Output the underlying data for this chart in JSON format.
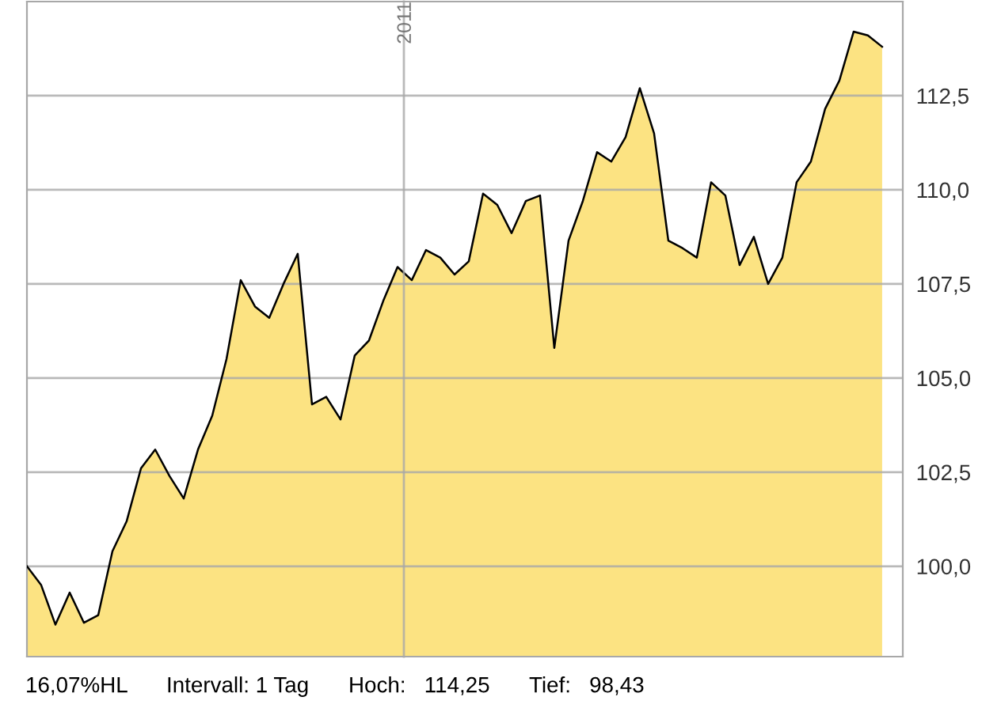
{
  "chart_data": {
    "type": "area",
    "categories": [
      null,
      null,
      null,
      null,
      null,
      null,
      null,
      null,
      null,
      null,
      null,
      null,
      null,
      null,
      null,
      null,
      null,
      null,
      null,
      null,
      null,
      null,
      null,
      null,
      null,
      null,
      null,
      null,
      null,
      null,
      null,
      null,
      null,
      null,
      null,
      null,
      null,
      null,
      null,
      null,
      null,
      null,
      null,
      null,
      null,
      null,
      null,
      null,
      null,
      null,
      null,
      null,
      null,
      null,
      null,
      null,
      null,
      null,
      null,
      null,
      null
    ],
    "series": [
      {
        "color": "#fce382",
        "values": [
          100.0,
          99.5,
          98.45,
          99.3,
          98.5,
          98.7,
          100.4,
          101.2,
          102.6,
          103.1,
          102.4,
          101.8,
          103.1,
          104.0,
          105.5,
          107.6,
          106.9,
          106.6,
          107.5,
          108.3,
          104.3,
          104.5,
          103.9,
          105.6,
          106.0,
          107.05,
          107.95,
          107.6,
          108.4,
          108.2,
          107.75,
          108.1,
          109.9,
          109.6,
          108.85,
          109.7,
          109.85,
          105.8,
          108.65,
          109.7,
          111.0,
          110.75,
          111.4,
          112.7,
          111.5,
          108.65,
          108.45,
          108.2,
          110.2,
          109.85,
          108.0,
          108.75,
          107.5,
          108.2,
          110.2,
          110.75,
          112.15,
          112.9,
          114.2,
          114.1,
          113.8
        ]
      }
    ],
    "ylim": [
      97.6,
      115.0
    ],
    "yticks": [
      {
        "value": 100,
        "label": "100,0"
      },
      {
        "value": 102.5,
        "label": "102,5"
      },
      {
        "value": 105,
        "label": "105,0"
      },
      {
        "value": 107.5,
        "label": "107,5"
      },
      {
        "value": 110,
        "label": "110,0"
      },
      {
        "value": 112.5,
        "label": "112,5"
      }
    ],
    "grid": true,
    "legend": false,
    "annotations": [
      "2011",
      "16,07%HL",
      "Intervall: 1 Tag",
      "Hoch:   114,25",
      "Tief:   98,43"
    ]
  }
}
